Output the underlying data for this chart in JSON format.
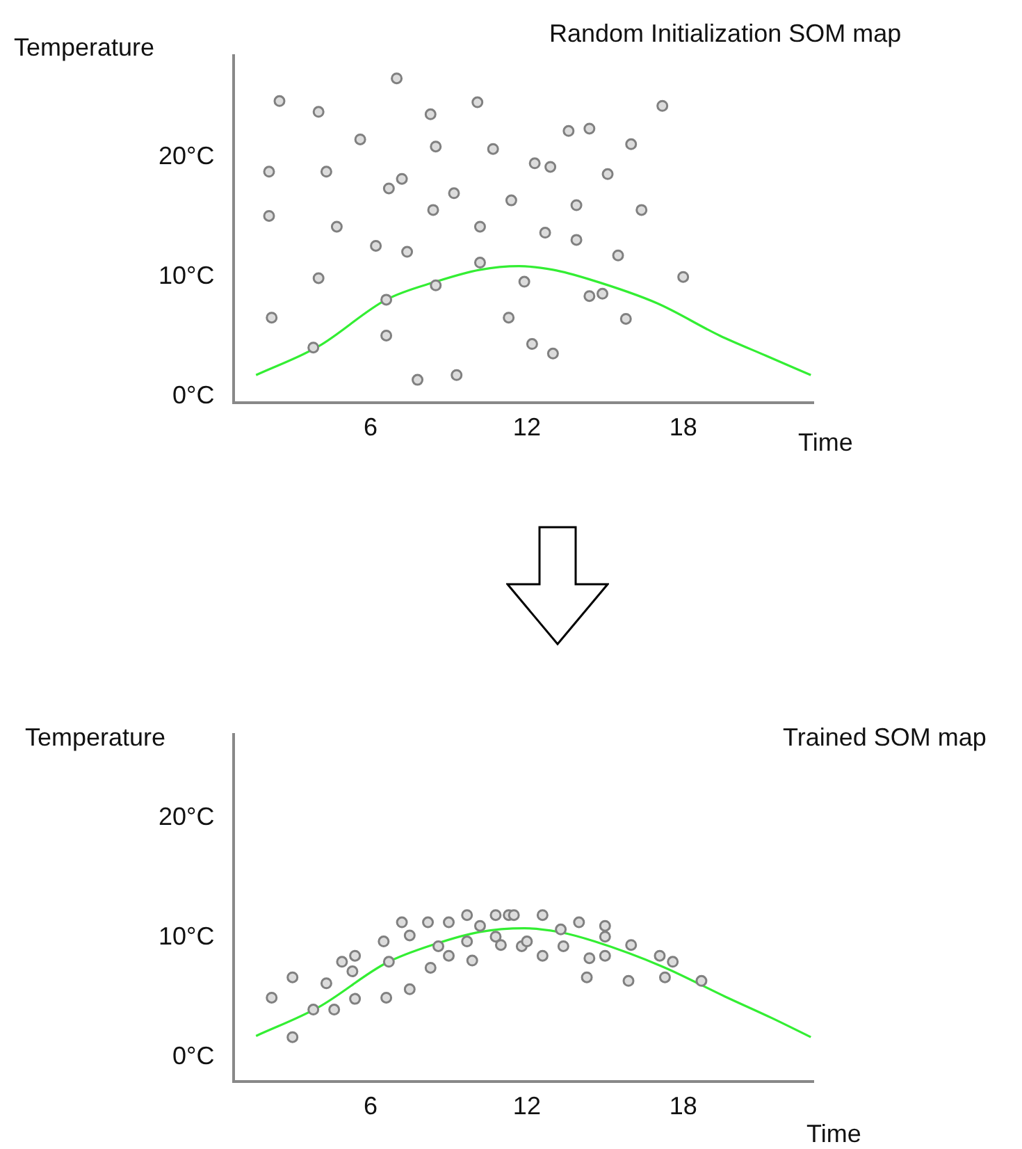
{
  "chart_data": [
    {
      "type": "scatter",
      "title": "Random Initialization SOM map",
      "xlabel": "Time",
      "ylabel": "Temperature",
      "xlim": [
        0.75,
        23
      ],
      "ylim": [
        -0.5,
        28.5
      ],
      "xticks": [
        6,
        12,
        18
      ],
      "yticks": [
        {
          "value": 0,
          "label": "0°C"
        },
        {
          "value": 10,
          "label": "10°C"
        },
        {
          "value": 20,
          "label": "20°C"
        }
      ],
      "marker": "circle",
      "series": [
        {
          "type": "scatter",
          "color": "#808080",
          "x": [
            7.0,
            2.5,
            4.0,
            8.3,
            10.1,
            17.2,
            5.6,
            8.5,
            10.7,
            13.6,
            14.4,
            16.0,
            2.1,
            4.3,
            6.7,
            7.2,
            12.3,
            12.9,
            15.1,
            9.2,
            8.4,
            11.4,
            13.9,
            16.4,
            2.1,
            4.7,
            10.2,
            12.7,
            13.9,
            6.2,
            7.4,
            10.2,
            15.5,
            4.0,
            8.5,
            11.9,
            18.0,
            6.6,
            14.4,
            14.9,
            2.2,
            11.3,
            15.8,
            3.8,
            6.6,
            12.2,
            13.0,
            7.8,
            9.3
          ],
          "values": [
            26.6,
            24.7,
            23.8,
            23.6,
            24.6,
            24.3,
            21.5,
            20.9,
            20.7,
            22.2,
            22.4,
            21.1,
            18.8,
            18.8,
            17.4,
            18.2,
            19.5,
            19.2,
            18.6,
            17.0,
            15.6,
            16.4,
            16.0,
            15.6,
            15.1,
            14.2,
            14.2,
            13.7,
            13.1,
            12.6,
            12.1,
            11.2,
            11.8,
            9.9,
            9.3,
            9.6,
            10.0,
            8.1,
            8.4,
            8.6,
            6.6,
            6.6,
            6.5,
            4.1,
            5.1,
            4.4,
            3.6,
            1.4,
            1.8
          ]
        },
        {
          "type": "line",
          "color": "#33ee33",
          "marker": "none",
          "x": [
            1.6,
            4.0,
            6.6,
            8.5,
            10.2,
            11.7,
            13.0,
            14.4,
            17.0,
            19.4,
            21.2,
            22.9
          ],
          "values": [
            1.8,
            4.2,
            8.1,
            9.6,
            10.6,
            10.9,
            10.6,
            9.8,
            7.8,
            5.1,
            3.4,
            1.8
          ]
        }
      ]
    },
    {
      "type": "scatter",
      "title": "Trained SOM map",
      "xlabel": "Time",
      "ylabel": "Temperature",
      "xlim": [
        0.75,
        23
      ],
      "ylim": [
        -2,
        27
      ],
      "xticks": [
        6,
        12,
        18
      ],
      "yticks": [
        {
          "value": 0,
          "label": "0°C"
        },
        {
          "value": 10,
          "label": "10°C"
        },
        {
          "value": 20,
          "label": "20°C"
        }
      ],
      "marker": "circle",
      "series": [
        {
          "type": "scatter",
          "color": "#808080",
          "x": [
            2.2,
            3.0,
            3.0,
            3.8,
            4.3,
            4.6,
            4.9,
            5.3,
            5.4,
            5.4,
            6.5,
            6.7,
            6.6,
            7.2,
            7.5,
            7.5,
            8.2,
            8.3,
            8.6,
            9.0,
            9.0,
            9.7,
            9.7,
            9.9,
            10.2,
            10.8,
            10.8,
            11.0,
            11.3,
            11.5,
            11.8,
            12.0,
            12.6,
            12.6,
            13.3,
            13.4,
            14.0,
            14.4,
            14.3,
            15.0,
            15.0,
            15.0,
            15.9,
            16.0,
            17.1,
            17.3,
            17.6,
            18.7
          ],
          "values": [
            5.0,
            6.7,
            1.7,
            4.0,
            6.2,
            4.0,
            8.0,
            7.2,
            8.5,
            4.9,
            9.7,
            8.0,
            5.0,
            11.3,
            10.2,
            5.7,
            11.3,
            7.5,
            9.3,
            11.3,
            8.5,
            11.9,
            9.7,
            8.1,
            11.0,
            11.9,
            10.1,
            9.4,
            11.9,
            11.9,
            9.3,
            9.7,
            11.9,
            8.5,
            10.7,
            9.3,
            11.3,
            8.3,
            6.7,
            11.0,
            10.1,
            8.5,
            6.4,
            9.4,
            8.5,
            6.7,
            8.0,
            6.4
          ]
        },
        {
          "type": "line",
          "color": "#33ee33",
          "marker": "none",
          "x": [
            1.6,
            4.0,
            6.6,
            8.5,
            10.2,
            11.9,
            13.2,
            14.6,
            17.2,
            19.6,
            21.4,
            22.9
          ],
          "values": [
            1.8,
            4.2,
            7.9,
            9.5,
            10.5,
            10.8,
            10.5,
            9.7,
            7.6,
            5.1,
            3.3,
            1.7
          ]
        }
      ]
    }
  ]
}
